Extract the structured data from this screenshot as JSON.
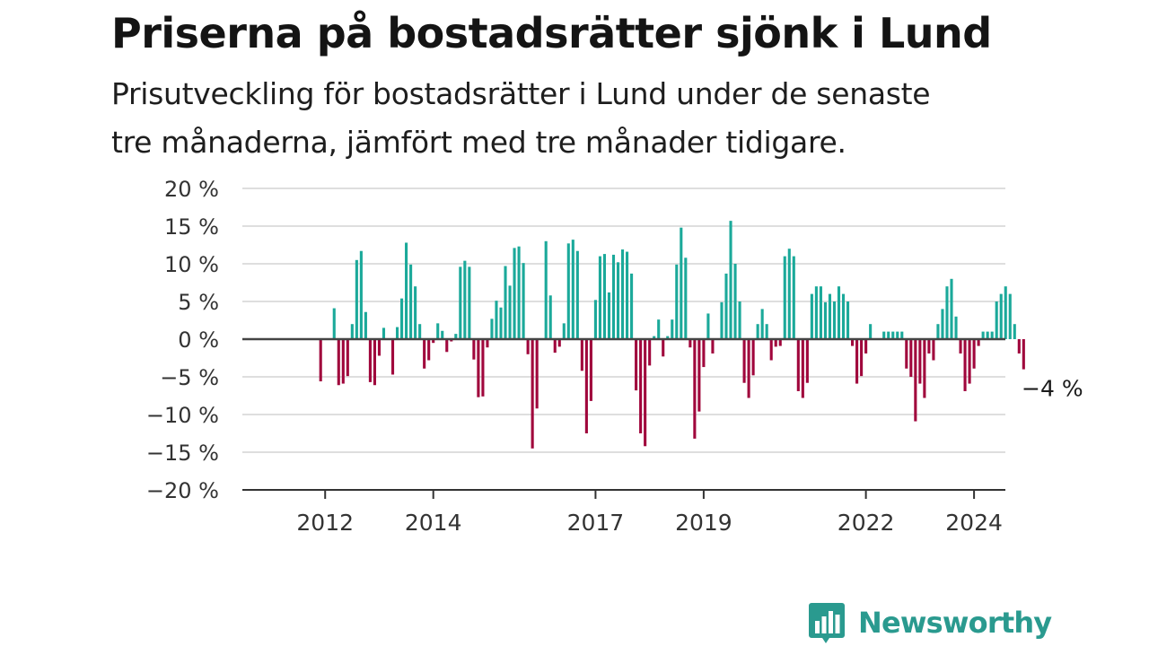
{
  "header": {
    "title": "Priserna på bostadsrätter sjönk i Lund",
    "subtitle_line1": "Prisutveckling för bostadsrätter i Lund under de senaste",
    "subtitle_line2": "tre månaderna, jämfört med tre månader tidigare."
  },
  "brand": {
    "name": "Newsworthy",
    "color": "#2a9a8f"
  },
  "colors": {
    "positive": "#1ba99a",
    "negative": "#a0063c",
    "grid": "#dedede",
    "zero_line": "#444444",
    "axis": "#333333"
  },
  "chart_data": {
    "type": "bar",
    "x_unit": "month",
    "y_ticks": [
      -20,
      -15,
      -10,
      -5,
      0,
      5,
      10,
      15,
      20
    ],
    "y_tick_labels": [
      "−20 %",
      "−15 %",
      "−10 %",
      "−5 %",
      "0 %",
      "5 %",
      "10 %",
      "15 %",
      "20 %"
    ],
    "ylim": [
      -20,
      20
    ],
    "x_ticks": [
      {
        "label": "2012",
        "date": "2012-01"
      },
      {
        "label": "2014",
        "date": "2014-01"
      },
      {
        "label": "2017",
        "date": "2017-01"
      },
      {
        "label": "2019",
        "date": "2019-01"
      },
      {
        "label": "2022",
        "date": "2022-01"
      },
      {
        "label": "2024",
        "date": "2024-01"
      }
    ],
    "x_range": [
      "2011-02",
      "2025-12"
    ],
    "grid": true,
    "annotation": {
      "text": "−4 %",
      "date": "2024-12",
      "value": -4
    },
    "series": [
      {
        "start": "2011-12",
        "values": [
          -5.6,
          0,
          0,
          4.1,
          -6.1,
          -5.9,
          -4.9,
          2.0,
          10.5,
          11.7,
          3.6,
          -5.7,
          -6.1,
          -2.2,
          1.5,
          0,
          -4.7,
          1.6,
          5.4,
          12.8,
          9.9,
          7.0,
          2.0,
          -3.9,
          -2.8,
          -0.5,
          2.1,
          1.1,
          -1.7,
          -0.3,
          0.7,
          9.6,
          10.4,
          9.6,
          -2.7,
          -7.7,
          -7.6,
          -1.1,
          2.7,
          5.1,
          4.2,
          9.7,
          7.1,
          12.1,
          12.3,
          10.1,
          -2.0,
          -14.5,
          -9.2,
          0,
          13.0,
          5.8,
          -1.8,
          -1.0,
          2.1,
          12.7,
          13.2,
          11.7,
          -4.2,
          -12.5,
          -8.2,
          5.2,
          11.0,
          11.3,
          6.2,
          11.2,
          10.2,
          11.9,
          11.6,
          8.7,
          -6.8,
          -12.5,
          -14.2,
          -3.5,
          0.4,
          2.6,
          -2.3,
          0.4,
          2.6,
          9.9,
          14.8,
          10.8,
          -1.1,
          -13.2,
          -9.6,
          -3.7,
          3.4,
          -1.9,
          0,
          4.9,
          8.7,
          15.7,
          10.0,
          5.0,
          -5.8,
          -7.8,
          -4.8,
          2.0,
          4.0,
          2.0,
          -2.8,
          -1.0,
          -0.9,
          11.0,
          12.0,
          11.0,
          -6.9,
          -7.8,
          -5.8,
          6.0,
          7.0,
          7.0,
          4.9,
          6.0,
          5.0,
          7.0,
          6.0,
          5.0,
          -0.9,
          -5.9,
          -4.9,
          -1.9,
          2.0,
          0,
          0,
          1.0,
          1.0,
          1.0,
          1.0,
          1.0,
          -3.9,
          -5.0,
          -10.9,
          -5.9,
          -7.8,
          -1.9,
          -2.8,
          2.0,
          4.0,
          7.0,
          8.0,
          3.0,
          -1.9,
          -6.9,
          -5.9,
          -3.9,
          -0.9,
          1.0,
          1.0,
          1.0,
          5.0,
          6.0,
          7.0,
          6.0,
          2.0,
          -1.9,
          -4.0
        ]
      }
    ]
  }
}
